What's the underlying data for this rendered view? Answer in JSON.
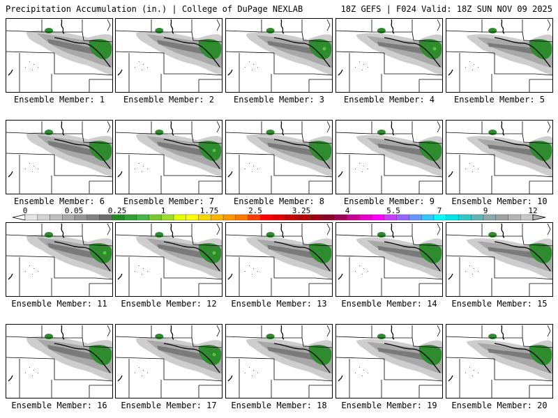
{
  "header": {
    "title": "Precipitation Accumulation (in.) | College of DuPage NEXLAB",
    "run_info": "18Z GEFS | F024 Valid: 18Z SUN NOV 09 2025"
  },
  "colors": {
    "bins": [
      "#e6e6e6",
      "#d2d2d2",
      "#bebebe",
      "#aaaaaa",
      "#969696",
      "#828282",
      "#6e6e6e",
      "#1e8c1e",
      "#32a032",
      "#46b446",
      "#78c832",
      "#a0dc28",
      "#e6ff00",
      "#ffff00",
      "#ffd700",
      "#ffb400",
      "#ff9600",
      "#ff7800",
      "#ff3c00",
      "#ff0000",
      "#e60000",
      "#c80000",
      "#b40000",
      "#a00014",
      "#8c0028",
      "#a0005a",
      "#c80096",
      "#e600c8",
      "#ff00ff",
      "#c83cff",
      "#9664ff",
      "#6496ff",
      "#32c8ff",
      "#00ffff",
      "#00e6e6",
      "#32c8c8",
      "#64b4b4",
      "#8caaaa",
      "#a0a0a0",
      "#b4b4b4",
      "#c8c8c8"
    ],
    "map_line": "#000000",
    "light_precip": "#cdcdcd",
    "mid_precip": "#a8a8a8",
    "heavy_precip": "#7a7a7a",
    "green_precip": "#2e8b2e",
    "bright_green": "#5cc43c"
  },
  "legend": {
    "labels": [
      "0",
      "0.05",
      "0.25",
      "1",
      "1.75",
      "2.5",
      "3.25",
      "4",
      "5.5",
      "7",
      "9",
      "12"
    ]
  },
  "members": [
    {
      "caption": "Ensemble Member: 1",
      "bright": false
    },
    {
      "caption": "Ensemble Member: 2",
      "bright": false
    },
    {
      "caption": "Ensemble Member: 3",
      "bright": true
    },
    {
      "caption": "Ensemble Member: 4",
      "bright": true
    },
    {
      "caption": "Ensemble Member: 5",
      "bright": false
    },
    {
      "caption": "Ensemble Member: 6",
      "bright": false
    },
    {
      "caption": "Ensemble Member: 7",
      "bright": true
    },
    {
      "caption": "Ensemble Member: 8",
      "bright": false
    },
    {
      "caption": "Ensemble Member: 9",
      "bright": false
    },
    {
      "caption": "Ensemble Member: 10",
      "bright": false
    },
    {
      "caption": "Ensemble Member: 11",
      "bright": true
    },
    {
      "caption": "Ensemble Member: 12",
      "bright": true
    },
    {
      "caption": "Ensemble Member: 13",
      "bright": false
    },
    {
      "caption": "Ensemble Member: 14",
      "bright": false
    },
    {
      "caption": "Ensemble Member: 15",
      "bright": false
    },
    {
      "caption": "Ensemble Member: 16",
      "bright": false
    },
    {
      "caption": "Ensemble Member: 17",
      "bright": true
    },
    {
      "caption": "Ensemble Member: 18",
      "bright": false
    },
    {
      "caption": "Ensemble Member: 19",
      "bright": false
    },
    {
      "caption": "Ensemble Member: 20",
      "bright": false
    }
  ]
}
